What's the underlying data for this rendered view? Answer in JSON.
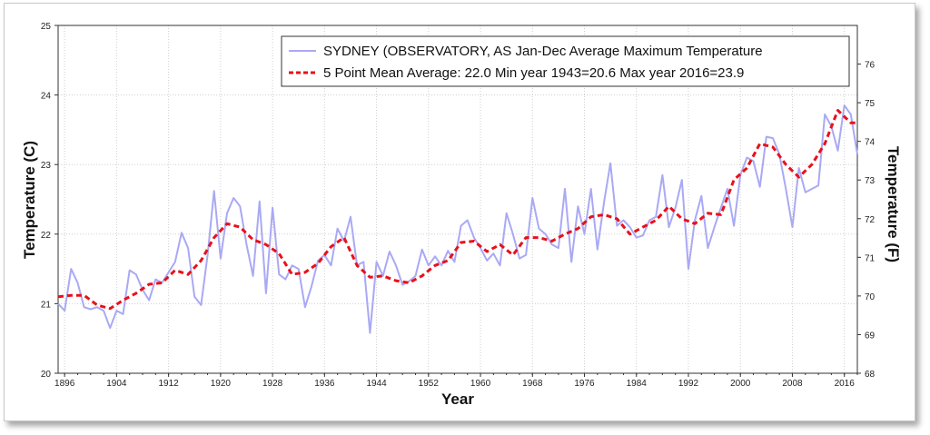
{
  "chart_data": {
    "type": "line",
    "xlabel": "Year",
    "ylabel": "Temperature (C)",
    "ylabel_right": "Temperature (F)",
    "xlim": [
      1895,
      2018
    ],
    "ylim": [
      20,
      25
    ],
    "ylim_right_F": [
      68,
      77
    ],
    "x_ticks": [
      "1896",
      "1904",
      "1912",
      "1920",
      "1928",
      "1936",
      "1944",
      "1952",
      "1960",
      "1968",
      "1976",
      "1984",
      "1992",
      "2000",
      "2008",
      "2016"
    ],
    "y_ticks": [
      "20",
      "21",
      "22",
      "23",
      "24",
      "25"
    ],
    "y_ticks_right": [
      "68",
      "69",
      "70",
      "71",
      "72",
      "73",
      "74",
      "75",
      "76"
    ],
    "grid": true,
    "legend_position": "top-right",
    "colors": {
      "annual": "#a9a9f5",
      "mean": "#e8101a"
    },
    "series": [
      {
        "name": "SYDNEY (OBSERVATORY, AS  Jan-Dec  Average Maximum Temperature",
        "style": "line",
        "x": [
          1895,
          1896,
          1897,
          1898,
          1899,
          1900,
          1901,
          1902,
          1903,
          1904,
          1905,
          1906,
          1907,
          1908,
          1909,
          1910,
          1911,
          1912,
          1913,
          1914,
          1915,
          1916,
          1917,
          1918,
          1919,
          1920,
          1921,
          1922,
          1923,
          1924,
          1925,
          1926,
          1927,
          1928,
          1929,
          1930,
          1931,
          1932,
          1933,
          1934,
          1935,
          1936,
          1937,
          1938,
          1939,
          1940,
          1941,
          1942,
          1943,
          1944,
          1945,
          1946,
          1947,
          1948,
          1949,
          1950,
          1951,
          1952,
          1953,
          1954,
          1955,
          1956,
          1957,
          1958,
          1959,
          1960,
          1961,
          1962,
          1963,
          1964,
          1965,
          1966,
          1967,
          1968,
          1969,
          1970,
          1971,
          1972,
          1973,
          1974,
          1975,
          1976,
          1977,
          1978,
          1979,
          1980,
          1981,
          1982,
          1983,
          1984,
          1985,
          1986,
          1987,
          1988,
          1989,
          1990,
          1991,
          1992,
          1993,
          1994,
          1995,
          1996,
          1997,
          1998,
          1999,
          2000,
          2001,
          2002,
          2003,
          2004,
          2005,
          2006,
          2007,
          2008,
          2009,
          2010,
          2011,
          2012,
          2013,
          2014,
          2015,
          2016,
          2017,
          2018
        ],
        "values": [
          21.0,
          20.9,
          21.5,
          21.3,
          20.95,
          20.92,
          20.95,
          20.9,
          20.65,
          20.9,
          20.85,
          21.48,
          21.42,
          21.2,
          21.05,
          21.35,
          21.3,
          21.45,
          21.6,
          22.02,
          21.8,
          21.1,
          20.98,
          21.7,
          22.62,
          21.65,
          22.3,
          22.52,
          22.4,
          21.85,
          21.4,
          22.47,
          21.15,
          22.38,
          21.42,
          21.35,
          21.55,
          21.5,
          20.95,
          21.25,
          21.62,
          21.7,
          21.55,
          22.08,
          21.9,
          22.25,
          21.55,
          21.6,
          20.58,
          21.6,
          21.4,
          21.75,
          21.55,
          21.27,
          21.32,
          21.4,
          21.78,
          21.55,
          21.68,
          21.55,
          21.76,
          21.6,
          22.12,
          22.2,
          21.95,
          21.8,
          21.62,
          21.72,
          21.55,
          22.3,
          22.0,
          21.65,
          21.7,
          22.52,
          22.08,
          22.0,
          21.85,
          21.8,
          22.65,
          21.6,
          22.4,
          22.0,
          22.65,
          21.78,
          22.45,
          23.02,
          22.12,
          22.2,
          22.1,
          21.95,
          21.98,
          22.2,
          22.25,
          22.85,
          22.1,
          22.38,
          22.78,
          21.5,
          22.2,
          22.55,
          21.8,
          22.1,
          22.38,
          22.65,
          22.12,
          22.85,
          23.1,
          23.05,
          22.68,
          23.4,
          23.38,
          23.15,
          22.65,
          22.1,
          22.95,
          22.6,
          22.65,
          22.7,
          23.72,
          23.55,
          23.2,
          23.85,
          23.72,
          23.15
        ]
      },
      {
        "name": "5 Point Mean  Average: 22.0  Min year 1943=20.6  Max year 2016=23.9",
        "style": "dashed",
        "x": [
          1895,
          1897,
          1899,
          1901,
          1903,
          1905,
          1907,
          1909,
          1911,
          1913,
          1915,
          1917,
          1919,
          1921,
          1923,
          1925,
          1927,
          1929,
          1931,
          1933,
          1935,
          1937,
          1939,
          1941,
          1943,
          1945,
          1947,
          1949,
          1951,
          1953,
          1955,
          1957,
          1959,
          1961,
          1963,
          1965,
          1967,
          1969,
          1971,
          1973,
          1975,
          1977,
          1979,
          1981,
          1983,
          1985,
          1987,
          1989,
          1991,
          1993,
          1995,
          1997,
          1999,
          2001,
          2003,
          2005,
          2007,
          2009,
          2011,
          2013,
          2015,
          2017,
          2018
        ],
        "values": [
          21.1,
          21.12,
          21.12,
          20.98,
          20.93,
          21.05,
          21.15,
          21.28,
          21.3,
          21.48,
          21.42,
          21.62,
          21.95,
          22.15,
          22.1,
          21.92,
          21.85,
          21.72,
          21.42,
          21.45,
          21.58,
          21.82,
          21.95,
          21.55,
          21.38,
          21.4,
          21.33,
          21.3,
          21.4,
          21.55,
          21.62,
          21.88,
          21.9,
          21.75,
          21.85,
          21.7,
          21.95,
          21.95,
          21.9,
          22.0,
          22.08,
          22.25,
          22.28,
          22.22,
          22.0,
          22.1,
          22.2,
          22.4,
          22.22,
          22.15,
          22.3,
          22.28,
          22.78,
          22.95,
          23.3,
          23.25,
          23.0,
          22.82,
          23.0,
          23.3,
          23.78,
          23.6,
          23.6
        ]
      }
    ],
    "annotations": []
  }
}
